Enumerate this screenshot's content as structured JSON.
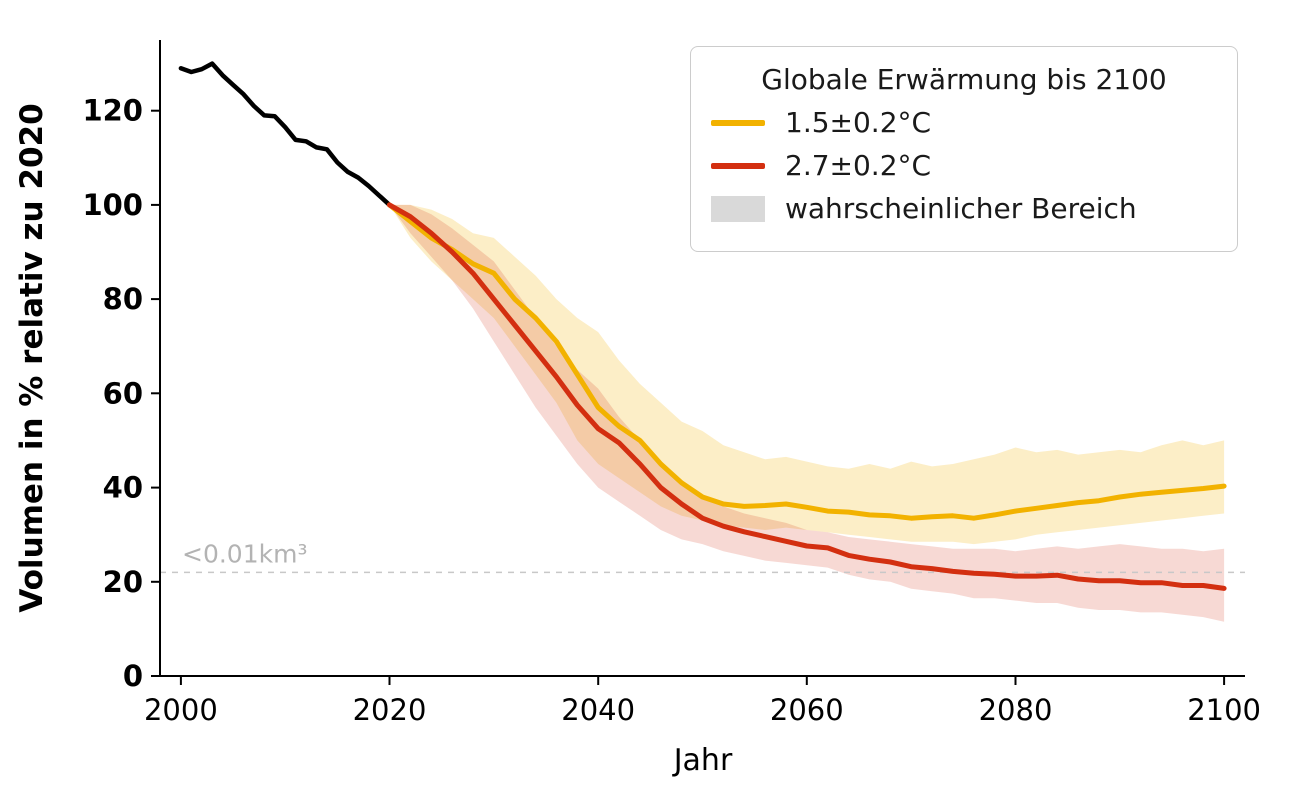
{
  "chart_data": {
    "type": "line",
    "title": "",
    "xlabel": "Jahr",
    "ylabel": "Volumen in % relativ zu 2020",
    "xlim": [
      1998,
      2102
    ],
    "ylim": [
      0,
      135
    ],
    "xticks": [
      2000,
      2020,
      2040,
      2060,
      2080,
      2100
    ],
    "yticks": [
      0,
      20,
      40,
      60,
      80,
      100,
      120
    ],
    "grid": false,
    "threshold": {
      "y": 22,
      "label": "<0.01km³",
      "color": "#c8c8c8",
      "label_color": "#b3b3b3",
      "style": "dashed"
    },
    "legend": {
      "position": "upper right",
      "title": "Globale Erwärmung bis 2100",
      "entries": [
        {
          "label": "1.5±0.2°C",
          "color": "#f2b200",
          "type": "line"
        },
        {
          "label": "2.7±0.2°C",
          "color": "#d32f10",
          "type": "line"
        },
        {
          "label": "wahrscheinlicher Bereich",
          "color": "#d9d9d9",
          "type": "patch"
        }
      ]
    },
    "series": [
      {
        "name": "beobachtung-historisch",
        "color": "#000000",
        "width": 4.5,
        "x": [
          2000,
          2001,
          2002,
          2003,
          2004,
          2005,
          2006,
          2007,
          2008,
          2009,
          2010,
          2011,
          2012,
          2013,
          2014,
          2015,
          2016,
          2017,
          2018,
          2019,
          2020
        ],
        "y": [
          129,
          128.2,
          128.8,
          130,
          127.5,
          125.5,
          123.5,
          121,
          119,
          118.8,
          116.5,
          113.8,
          113.5,
          112.2,
          111.8,
          109,
          107,
          105.8,
          104,
          102,
          100
        ]
      },
      {
        "name": "szenario-1-5C",
        "color": "#f2b200",
        "width": 5,
        "band_color": "#f2b200",
        "band_opacity": 0.22,
        "x": [
          2020,
          2022,
          2024,
          2026,
          2028,
          2030,
          2032,
          2034,
          2036,
          2038,
          2040,
          2042,
          2044,
          2046,
          2048,
          2050,
          2052,
          2054,
          2056,
          2058,
          2060,
          2062,
          2064,
          2066,
          2068,
          2070,
          2072,
          2074,
          2076,
          2078,
          2080,
          2082,
          2084,
          2086,
          2088,
          2090,
          2092,
          2094,
          2096,
          2098,
          2100
        ],
        "y": [
          100,
          96.5,
          93,
          90.5,
          87.5,
          85.5,
          80,
          76,
          71,
          64,
          57,
          53,
          50,
          45,
          41,
          38,
          36.5,
          36,
          36.2,
          36.5,
          35.8,
          35,
          34.8,
          34.2,
          34,
          33.5,
          33.8,
          34,
          33.5,
          34.2,
          35,
          35.6,
          36.2,
          36.8,
          37.2,
          38,
          38.6,
          39,
          39.4,
          39.8,
          40.3
        ],
        "band_upper": [
          100,
          100,
          99,
          97,
          94,
          93,
          89,
          85,
          80,
          76,
          73,
          67,
          62,
          58,
          54,
          52,
          49,
          47.5,
          46,
          46.5,
          45.5,
          44.5,
          44,
          45,
          44,
          45.5,
          44.5,
          45,
          46,
          47,
          48.5,
          47.5,
          48,
          47,
          47.5,
          48,
          47.5,
          49,
          50,
          49,
          50
        ],
        "band_lower": [
          100,
          93,
          88,
          84,
          80,
          76,
          70,
          64,
          58,
          50,
          45,
          42,
          39,
          36,
          34,
          33,
          32,
          31.5,
          31,
          31.5,
          31,
          30.5,
          30,
          29.5,
          29,
          28.5,
          28.5,
          28.5,
          28,
          28.5,
          29,
          30,
          30.5,
          31,
          31.5,
          32,
          32.5,
          33,
          33.5,
          34,
          34.5
        ]
      },
      {
        "name": "szenario-2-7C",
        "color": "#d32f10",
        "width": 5,
        "band_color": "#d32f10",
        "band_opacity": 0.18,
        "x": [
          2020,
          2022,
          2024,
          2026,
          2028,
          2030,
          2032,
          2034,
          2036,
          2038,
          2040,
          2042,
          2044,
          2046,
          2048,
          2050,
          2052,
          2054,
          2056,
          2058,
          2060,
          2062,
          2064,
          2066,
          2068,
          2070,
          2072,
          2074,
          2076,
          2078,
          2080,
          2082,
          2084,
          2086,
          2088,
          2090,
          2092,
          2094,
          2096,
          2098,
          2100
        ],
        "y": [
          100,
          97.5,
          94,
          90,
          85.5,
          80,
          74.5,
          69,
          63.5,
          57.5,
          52.5,
          49.5,
          45,
          40,
          36.5,
          33.5,
          31.8,
          30.6,
          29.6,
          28.6,
          27.6,
          27.2,
          25.6,
          24.8,
          24.2,
          23.2,
          22.8,
          22.2,
          21.8,
          21.6,
          21.2,
          21.2,
          21.4,
          20.6,
          20.2,
          20.2,
          19.8,
          19.8,
          19.2,
          19.2,
          18.6
        ],
        "band_upper": [
          100,
          100,
          98,
          95,
          91.5,
          88,
          82,
          76,
          70,
          65,
          61,
          55,
          50,
          45,
          41,
          38,
          36,
          34.5,
          33.5,
          32.5,
          31,
          30.5,
          29.5,
          29,
          28.5,
          28,
          27.5,
          27,
          27,
          27,
          26.5,
          27,
          27.5,
          27,
          27.5,
          28,
          27.5,
          27,
          27,
          26.5,
          27
        ],
        "band_lower": [
          100,
          94,
          89,
          84,
          78,
          71,
          64,
          57,
          51,
          45,
          40,
          37,
          34,
          31,
          29,
          28,
          26.5,
          25.5,
          24.5,
          24,
          23.5,
          23,
          21.5,
          20.5,
          20,
          18.5,
          18,
          17.5,
          16.5,
          16.5,
          16,
          15.5,
          15.5,
          14.5,
          14,
          14,
          13.5,
          13.5,
          13,
          12.5,
          11.5
        ]
      }
    ]
  }
}
